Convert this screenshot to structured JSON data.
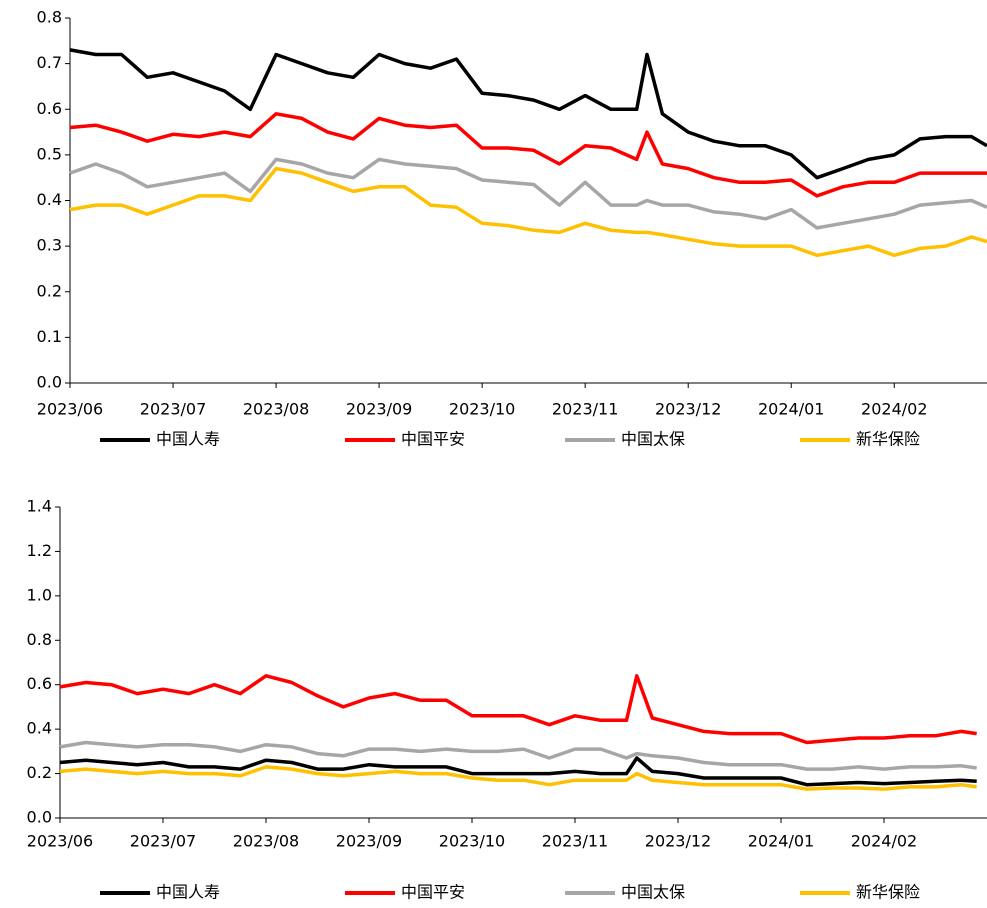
{
  "chart_data": [
    {
      "type": "line",
      "legend": "bottom",
      "grid": false,
      "x": [
        0,
        0.25,
        0.5,
        0.75,
        1,
        1.25,
        1.5,
        1.75,
        2,
        2.25,
        2.5,
        2.75,
        3,
        3.25,
        3.5,
        3.75,
        4,
        4.25,
        4.5,
        4.75,
        5,
        5.25,
        5.5,
        5.6,
        5.75,
        6,
        6.25,
        6.5,
        6.75,
        7,
        7.25,
        7.5,
        7.75,
        8,
        8.25,
        8.5,
        8.75,
        8.9
      ],
      "xlim": [
        0,
        8.9
      ],
      "xticks": [
        {
          "value": 0,
          "label": "2023/06"
        },
        {
          "value": 1,
          "label": "2023/07"
        },
        {
          "value": 2,
          "label": "2023/08"
        },
        {
          "value": 3,
          "label": "2023/09"
        },
        {
          "value": 4,
          "label": "2023/10"
        },
        {
          "value": 5,
          "label": "2023/11"
        },
        {
          "value": 6,
          "label": "2023/12"
        },
        {
          "value": 7,
          "label": "2024/01"
        },
        {
          "value": 8,
          "label": "2024/02"
        }
      ],
      "ylim": [
        0,
        0.8
      ],
      "yticks": [
        {
          "value": 0,
          "label": "0.0"
        },
        0.1,
        0.2,
        0.3,
        0.4,
        0.5,
        0.6,
        0.7,
        0.8
      ],
      "series": [
        {
          "name": "中国人寿",
          "color": "#000000",
          "values": [
            0.73,
            0.72,
            0.72,
            0.67,
            0.68,
            0.66,
            0.64,
            0.6,
            0.72,
            0.7,
            0.68,
            0.67,
            0.72,
            0.7,
            0.69,
            0.71,
            0.635,
            0.63,
            0.62,
            0.6,
            0.63,
            0.6,
            0.6,
            0.72,
            0.59,
            0.55,
            0.53,
            0.52,
            0.52,
            0.5,
            0.45,
            0.47,
            0.49,
            0.5,
            0.535,
            0.54,
            0.54,
            0.52
          ]
        },
        {
          "name": "中国平安",
          "color": "#ff0000",
          "values": [
            0.56,
            0.565,
            0.55,
            0.53,
            0.545,
            0.54,
            0.55,
            0.54,
            0.59,
            0.58,
            0.55,
            0.535,
            0.58,
            0.565,
            0.56,
            0.565,
            0.515,
            0.515,
            0.51,
            0.48,
            0.52,
            0.515,
            0.49,
            0.55,
            0.48,
            0.47,
            0.45,
            0.44,
            0.44,
            0.445,
            0.41,
            0.43,
            0.44,
            0.44,
            0.46,
            0.46,
            0.46,
            0.46
          ]
        },
        {
          "name": "中国太保",
          "color": "#a6a6a6",
          "values": [
            0.46,
            0.48,
            0.46,
            0.43,
            0.44,
            0.45,
            0.46,
            0.42,
            0.49,
            0.48,
            0.46,
            0.45,
            0.49,
            0.48,
            0.475,
            0.47,
            0.445,
            0.44,
            0.435,
            0.39,
            0.44,
            0.39,
            0.39,
            0.4,
            0.39,
            0.39,
            0.375,
            0.37,
            0.36,
            0.38,
            0.34,
            0.35,
            0.36,
            0.37,
            0.39,
            0.395,
            0.4,
            0.385
          ]
        },
        {
          "name": "新华保险",
          "color": "#ffc000",
          "values": [
            0.38,
            0.39,
            0.39,
            0.37,
            0.39,
            0.41,
            0.41,
            0.4,
            0.47,
            0.46,
            0.44,
            0.42,
            0.43,
            0.43,
            0.39,
            0.385,
            0.35,
            0.345,
            0.335,
            0.33,
            0.35,
            0.335,
            0.33,
            0.33,
            0.325,
            0.315,
            0.305,
            0.3,
            0.3,
            0.3,
            0.28,
            0.29,
            0.3,
            0.28,
            0.295,
            0.3,
            0.32,
            0.31
          ]
        }
      ]
    },
    {
      "type": "line",
      "legend": "bottom",
      "grid": false,
      "x": [
        0,
        0.25,
        0.5,
        0.75,
        1,
        1.25,
        1.5,
        1.75,
        2,
        2.25,
        2.5,
        2.75,
        3,
        3.25,
        3.5,
        3.75,
        4,
        4.25,
        4.5,
        4.75,
        5,
        5.25,
        5.5,
        5.6,
        5.75,
        6,
        6.25,
        6.5,
        6.75,
        7,
        7.25,
        7.5,
        7.75,
        8,
        8.25,
        8.5,
        8.75,
        8.9
      ],
      "xlim": [
        0,
        9
      ],
      "xticks": [
        {
          "value": 0,
          "label": "2023/06"
        },
        {
          "value": 1,
          "label": "2023/07"
        },
        {
          "value": 2,
          "label": "2023/08"
        },
        {
          "value": 3,
          "label": "2023/09"
        },
        {
          "value": 4,
          "label": "2023/10"
        },
        {
          "value": 5,
          "label": "2023/11"
        },
        {
          "value": 6,
          "label": "2023/12"
        },
        {
          "value": 7,
          "label": "2024/01"
        },
        {
          "value": 8,
          "label": "2024/02"
        }
      ],
      "ylim": [
        0,
        1.4
      ],
      "yticks": [
        {
          "value": 0,
          "label": "0.0"
        },
        0.2,
        0.4,
        0.6,
        0.8,
        {
          "value": 1,
          "label": "1.0"
        },
        1.2,
        1.4
      ],
      "series": [
        {
          "name": "中国人寿",
          "color": "#000000",
          "values": [
            0.25,
            0.26,
            0.25,
            0.24,
            0.25,
            0.23,
            0.23,
            0.22,
            0.26,
            0.25,
            0.22,
            0.22,
            0.24,
            0.23,
            0.23,
            0.23,
            0.2,
            0.2,
            0.2,
            0.2,
            0.21,
            0.2,
            0.2,
            0.27,
            0.21,
            0.2,
            0.18,
            0.18,
            0.18,
            0.18,
            0.15,
            0.155,
            0.16,
            0.155,
            0.16,
            0.165,
            0.17,
            0.165
          ]
        },
        {
          "name": "中国平安",
          "color": "#ff0000",
          "values": [
            0.59,
            0.61,
            0.6,
            0.56,
            0.58,
            0.56,
            0.6,
            0.56,
            0.64,
            0.61,
            0.55,
            0.5,
            0.54,
            0.56,
            0.53,
            0.53,
            0.46,
            0.46,
            0.46,
            0.42,
            0.46,
            0.44,
            0.44,
            0.64,
            0.45,
            0.42,
            0.39,
            0.38,
            0.38,
            0.38,
            0.34,
            0.35,
            0.36,
            0.36,
            0.37,
            0.37,
            0.39,
            0.38
          ]
        },
        {
          "name": "中国太保",
          "color": "#a6a6a6",
          "values": [
            0.32,
            0.34,
            0.33,
            0.32,
            0.33,
            0.33,
            0.32,
            0.3,
            0.33,
            0.32,
            0.29,
            0.28,
            0.31,
            0.31,
            0.3,
            0.31,
            0.3,
            0.3,
            0.31,
            0.27,
            0.31,
            0.31,
            0.27,
            0.29,
            0.28,
            0.27,
            0.25,
            0.24,
            0.24,
            0.24,
            0.22,
            0.22,
            0.23,
            0.22,
            0.23,
            0.23,
            0.235,
            0.225
          ]
        },
        {
          "name": "新华保险",
          "color": "#ffc000",
          "values": [
            0.21,
            0.22,
            0.21,
            0.2,
            0.21,
            0.2,
            0.2,
            0.19,
            0.23,
            0.22,
            0.2,
            0.19,
            0.2,
            0.21,
            0.2,
            0.2,
            0.18,
            0.17,
            0.17,
            0.15,
            0.17,
            0.17,
            0.17,
            0.2,
            0.17,
            0.16,
            0.15,
            0.15,
            0.15,
            0.15,
            0.13,
            0.135,
            0.135,
            0.13,
            0.14,
            0.14,
            0.15,
            0.14
          ]
        }
      ]
    }
  ]
}
